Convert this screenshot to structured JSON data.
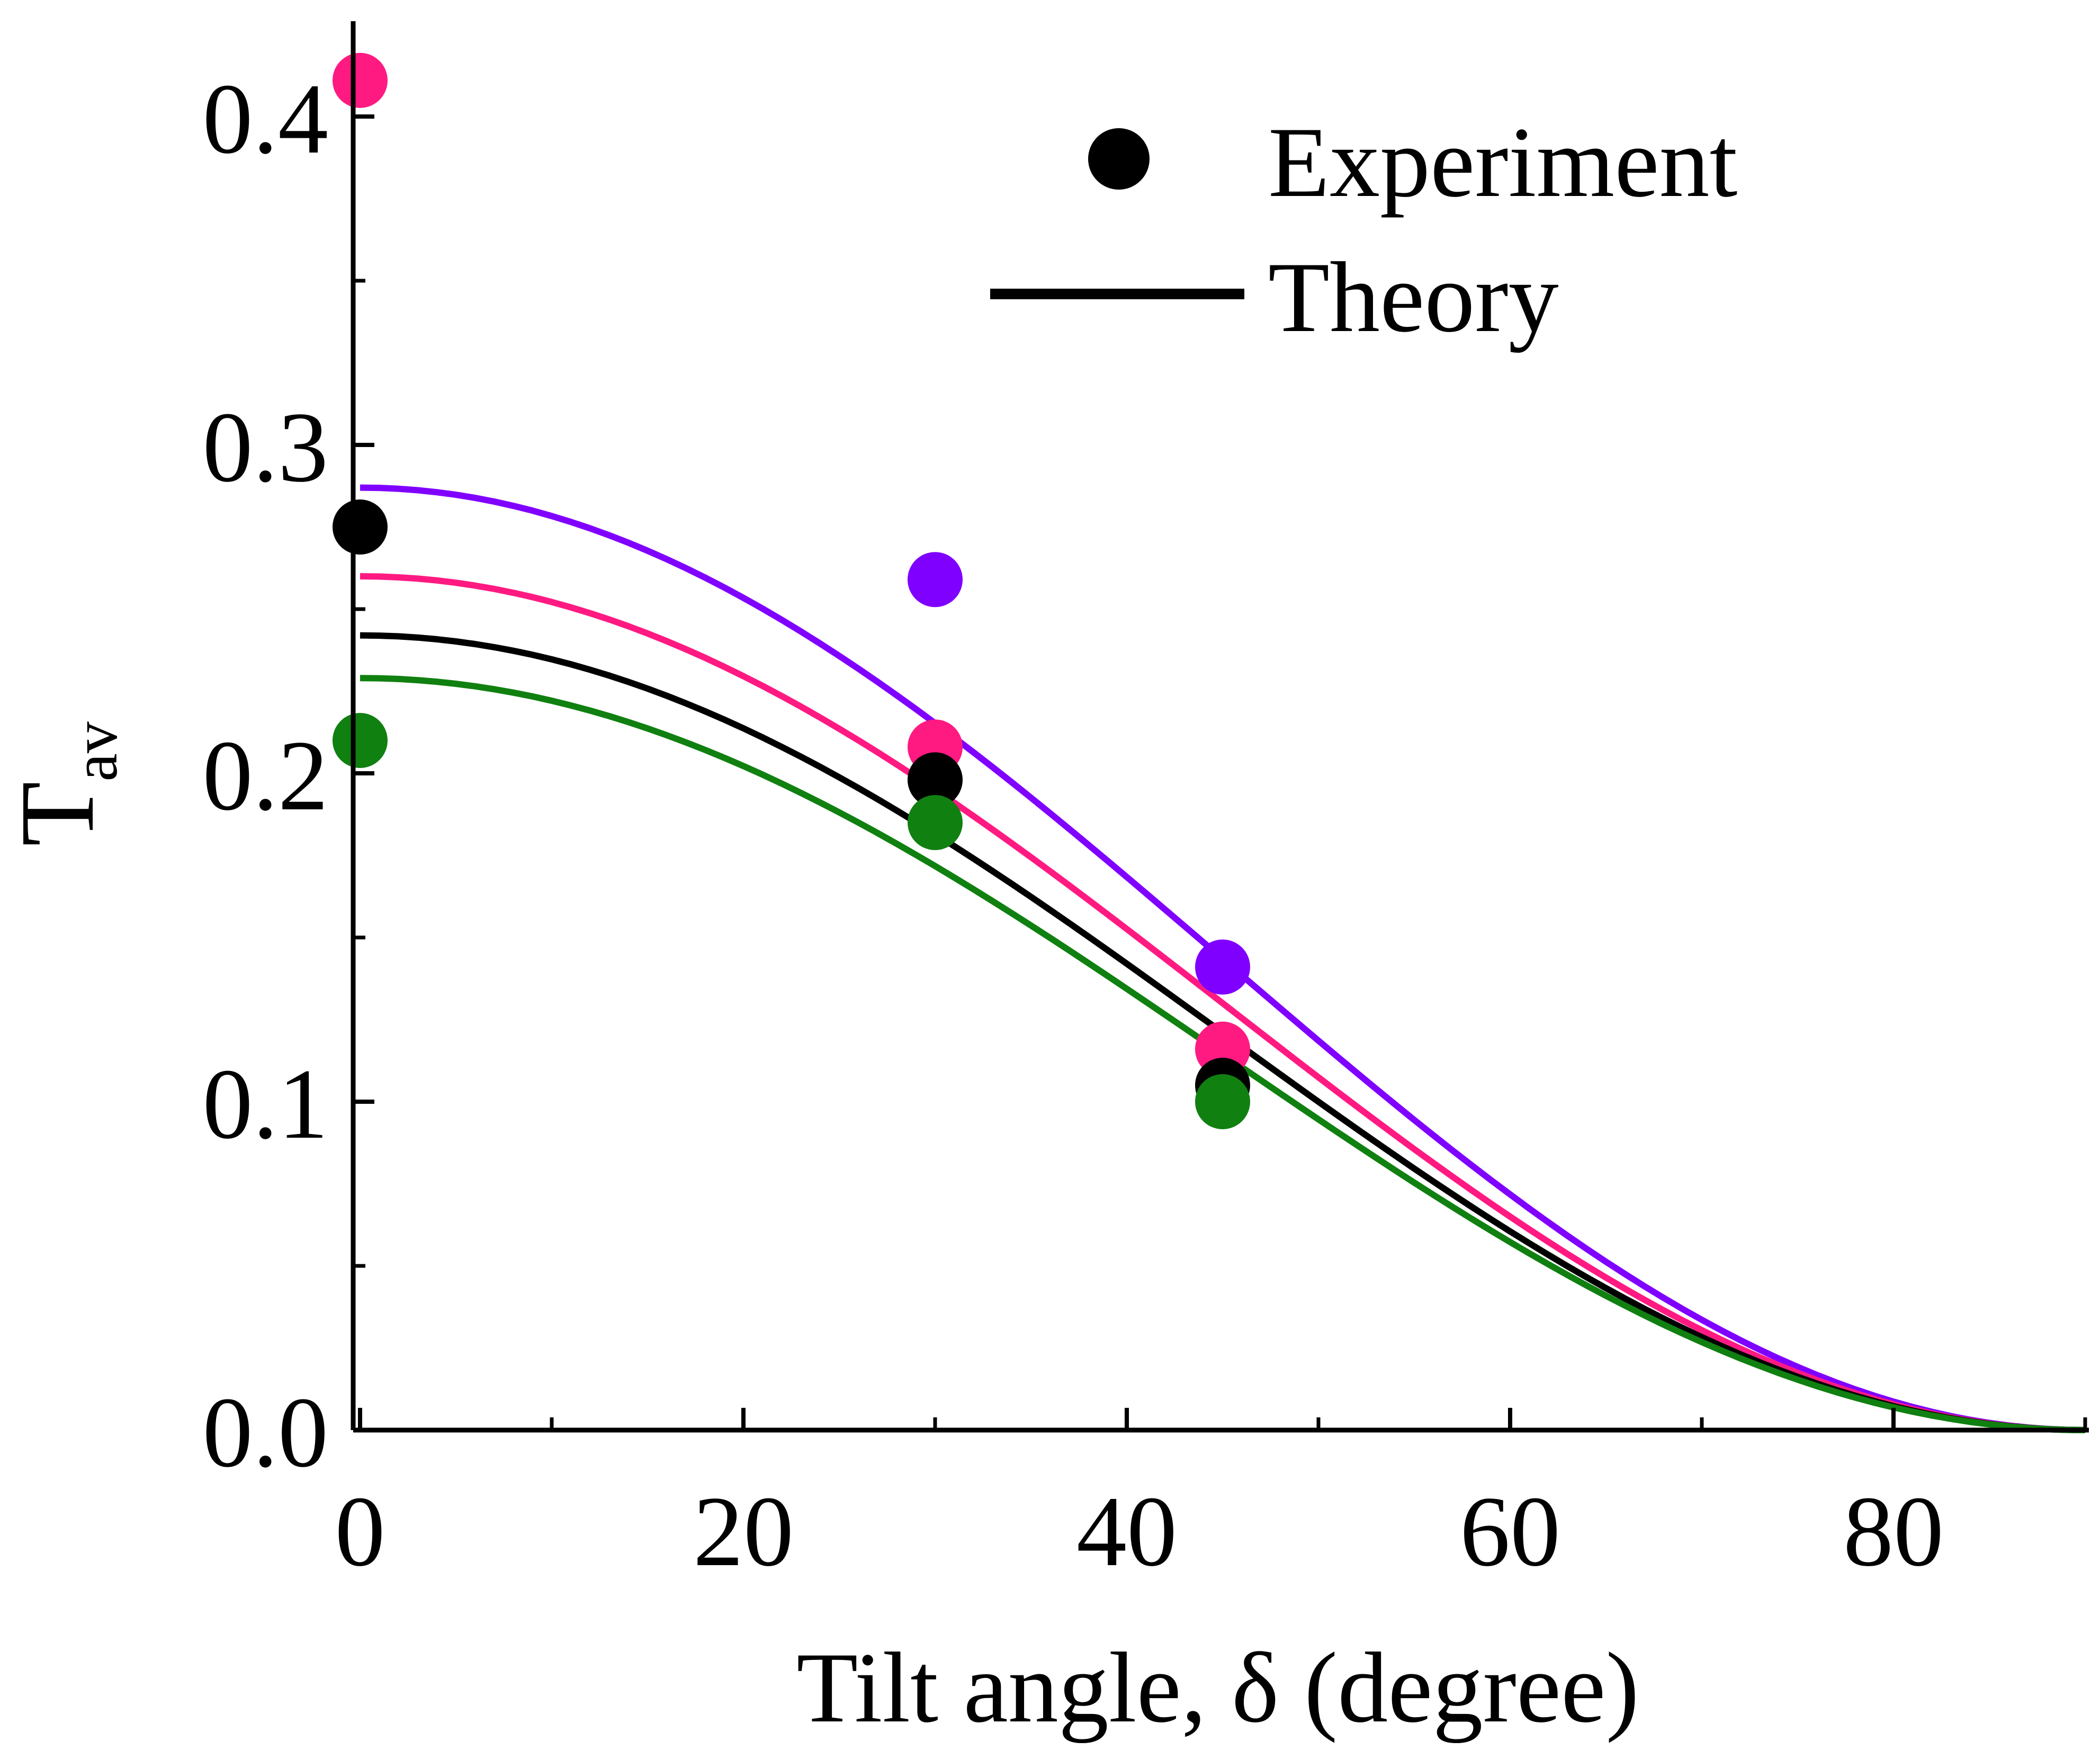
{
  "chart_data": {
    "type": "scatter",
    "title": "",
    "xlabel": "Tilt angle, δ (degree)",
    "ylabel": "T",
    "ylabel_subscript": "av",
    "xlim": [
      0,
      90
    ],
    "ylim": [
      0,
      0.43
    ],
    "x_ticks": [
      0,
      20,
      40,
      60,
      80
    ],
    "x_tick_labels": [
      "0",
      "20",
      "40",
      "60",
      "80"
    ],
    "x_minor_ticks": [
      10,
      30,
      50,
      70,
      90
    ],
    "y_ticks": [
      0,
      0.1,
      0.2,
      0.3,
      0.4
    ],
    "y_tick_labels": [
      "0.0",
      "0.1",
      "0.2",
      "0.3",
      "0.4"
    ],
    "y_minor_ticks": [
      0.05,
      0.15,
      0.25,
      0.35
    ],
    "grid": false,
    "legend": {
      "position": "top-right",
      "entries": [
        {
          "label": "Experiment",
          "marker": "circle",
          "color": "#000000"
        },
        {
          "label": "Theory",
          "marker": "line",
          "color": "#000000"
        }
      ]
    },
    "series": [
      {
        "name": "violet",
        "color": "#8000ff",
        "theory_t0": 0.287,
        "experiment": {
          "x": [
            30,
            45
          ],
          "y": [
            0.259,
            0.141
          ]
        }
      },
      {
        "name": "pink",
        "color": "#ff1a82",
        "theory_t0": 0.26,
        "experiment": {
          "x": [
            0,
            30,
            45
          ],
          "y": [
            0.411,
            0.208,
            0.116
          ]
        }
      },
      {
        "name": "black",
        "color": "#000000",
        "theory_t0": 0.242,
        "experiment": {
          "x": [
            0,
            30,
            45
          ],
          "y": [
            0.275,
            0.198,
            0.105
          ]
        }
      },
      {
        "name": "green",
        "color": "#108010",
        "theory_t0": 0.229,
        "experiment": {
          "x": [
            0,
            30,
            45
          ],
          "y": [
            0.21,
            0.185,
            0.1
          ]
        }
      }
    ],
    "theory_model": "T = T0 * cos^2(δ)"
  }
}
